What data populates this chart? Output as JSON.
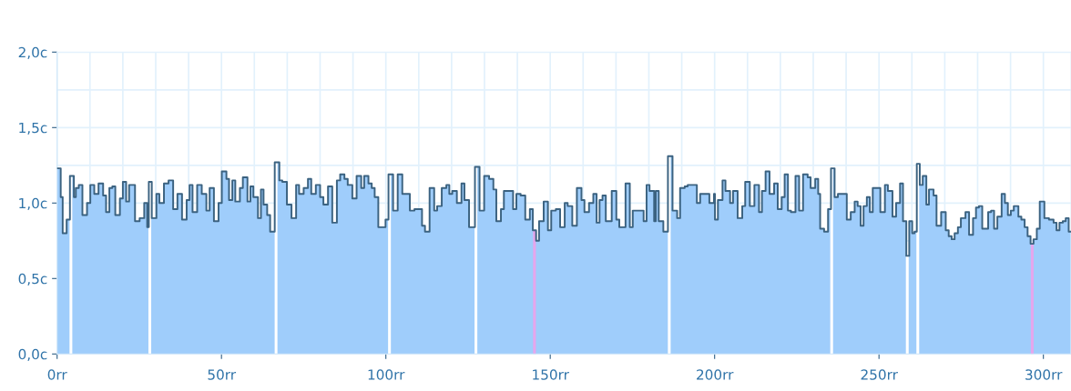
{
  "chart_data": {
    "type": "area",
    "xlim": [
      0,
      308.4
    ],
    "ylim": [
      0,
      2.0
    ],
    "xticks": [
      {
        "value": 0,
        "label": "0rr"
      },
      {
        "value": 50,
        "label": "50rr"
      },
      {
        "value": 100,
        "label": "100rr"
      },
      {
        "value": 150,
        "label": "150rr"
      },
      {
        "value": 200,
        "label": "200rr"
      },
      {
        "value": 250,
        "label": "250rr"
      },
      {
        "value": 300,
        "label": "300rr"
      }
    ],
    "yticks": [
      {
        "value": 0,
        "label": "0,0c"
      },
      {
        "value": 0.5,
        "label": "0,5c"
      },
      {
        "value": 1.0,
        "label": "1,0c"
      },
      {
        "value": 1.5,
        "label": "1,5c"
      },
      {
        "value": 2.0,
        "label": "2,0c"
      }
    ],
    "grid": true,
    "ref_lines": [
      {
        "axis": "x",
        "value": 4.2,
        "color": "#ffffff"
      },
      {
        "axis": "x",
        "value": 28.2,
        "color": "#ffffff"
      },
      {
        "axis": "x",
        "value": 66.6,
        "color": "#ffffff"
      },
      {
        "axis": "x",
        "value": 101.1,
        "color": "#ffffff"
      },
      {
        "axis": "x",
        "value": 127.4,
        "color": "#ffffff"
      },
      {
        "axis": "x",
        "value": 145.2,
        "color": "#e6a6ec"
      },
      {
        "axis": "x",
        "value": 186.2,
        "color": "#ffffff"
      },
      {
        "axis": "x",
        "value": 235.6,
        "color": "#ffffff"
      },
      {
        "axis": "x",
        "value": 258.6,
        "color": "#ffffff"
      },
      {
        "axis": "x",
        "value": 261.8,
        "color": "#ffffff"
      },
      {
        "axis": "x",
        "value": 296.6,
        "color": "#e6a6ec"
      }
    ],
    "series": [
      {
        "color": "#3b6280",
        "x": [
          0,
          1.1,
          1.1,
          1.7,
          1.7,
          2.9,
          2.9,
          3.9,
          3.9,
          5.1,
          5.1,
          5.7,
          5.7,
          6.6,
          6.6,
          7.7,
          7.7,
          9.1,
          9.1,
          10.1,
          10.1,
          11.3,
          11.3,
          12.6,
          12.6,
          14.0,
          14.0,
          14.9,
          14.9,
          15.9,
          15.9,
          16.8,
          16.8,
          17.7,
          17.7,
          19.1,
          19.1,
          20.0,
          20.0,
          21.0,
          21.0,
          21.9,
          21.9,
          23.7,
          23.7,
          25.1,
          25.1,
          26.5,
          26.5,
          27.4,
          27.4,
          27.9,
          27.9,
          28.8,
          28.8,
          30.2,
          30.2,
          31.1,
          31.1,
          32.5,
          32.5,
          33.9,
          33.9,
          35.3,
          35.3,
          36.6,
          36.6,
          38.0,
          38.0,
          39.4,
          39.4,
          40.3,
          40.3,
          41.2,
          41.2,
          42.6,
          42.6,
          44.0,
          44.0,
          45.4,
          45.4,
          46.4,
          46.4,
          47.7,
          47.7,
          49.1,
          49.1,
          50.1,
          50.1,
          51.5,
          51.5,
          52.3,
          52.3,
          53.3,
          53.3,
          54.2,
          54.2,
          55.6,
          55.6,
          56.5,
          56.5,
          57.9,
          57.9,
          58.8,
          58.8,
          59.7,
          59.7,
          61.1,
          61.1,
          62.0,
          62.0,
          62.8,
          62.8,
          63.9,
          63.9,
          64.8,
          64.8,
          66.2,
          66.2,
          67.6,
          67.6,
          68.5,
          68.5,
          69.9,
          69.9,
          71.3,
          71.3,
          72.7,
          72.7,
          73.6,
          73.6,
          75.0,
          75.0,
          76.3,
          76.3,
          77.3,
          77.3,
          78.7,
          78.7,
          80.0,
          80.0,
          81.0,
          81.0,
          82.4,
          82.4,
          83.7,
          83.7,
          85.1,
          85.1,
          86.1,
          86.1,
          87.4,
          87.4,
          88.4,
          88.4,
          89.8,
          89.8,
          91.1,
          91.1,
          92.5,
          92.5,
          93.4,
          93.4,
          94.7,
          94.7,
          95.7,
          95.7,
          96.6,
          96.6,
          97.7,
          97.7,
          99.9,
          99.9,
          100.8,
          100.8,
          102.2,
          102.2,
          103.6,
          103.6,
          105.0,
          105.0,
          107.3,
          107.3,
          108.7,
          108.7,
          111.0,
          111.0,
          111.9,
          111.9,
          113.3,
          113.3,
          114.7,
          114.7,
          115.6,
          115.6,
          117.0,
          117.0,
          118.4,
          118.4,
          119.3,
          119.3,
          120.2,
          120.2,
          121.6,
          121.6,
          123.0,
          123.0,
          123.9,
          123.9,
          125.3,
          125.3,
          127.1,
          127.1,
          128.5,
          128.5,
          129.9,
          129.9,
          131.4,
          131.4,
          132.7,
          132.7,
          133.6,
          133.6,
          135.0,
          135.0,
          135.9,
          135.9,
          138.7,
          138.7,
          139.7,
          139.7,
          141.0,
          141.0,
          142.4,
          142.4,
          143.8,
          143.8,
          144.7,
          144.7,
          145.7,
          145.7,
          146.6,
          146.6,
          148.0,
          148.0,
          149.3,
          149.3,
          150.3,
          150.3,
          151.7,
          151.7,
          153.0,
          153.0,
          154.4,
          154.4,
          155.3,
          155.3,
          156.7,
          156.7,
          158.1,
          158.1,
          159.5,
          159.5,
          160.4,
          160.4,
          161.8,
          161.8,
          163.1,
          163.1,
          164.1,
          164.1,
          165.0,
          165.0,
          165.9,
          165.9,
          166.9,
          166.9,
          168.7,
          168.7,
          170.1,
          170.1,
          171.0,
          171.0,
          172.9,
          172.9,
          174.2,
          174.2,
          175.1,
          175.1,
          178.4,
          178.4,
          179.3,
          179.3,
          180.2,
          180.2,
          181.6,
          181.6,
          182.1,
          182.1,
          183.0,
          183.0,
          184.4,
          184.4,
          185.8,
          185.8,
          187.2,
          187.2,
          188.6,
          188.6,
          189.5,
          189.5,
          190.9,
          190.9,
          191.8,
          191.8,
          194.6,
          194.6,
          195.6,
          195.6,
          198.4,
          198.4,
          199.8,
          199.8,
          200.1,
          200.1,
          201.0,
          201.0,
          202.4,
          202.4,
          203.3,
          203.3,
          204.7,
          204.7,
          205.6,
          205.6,
          207.0,
          207.0,
          208.4,
          208.4,
          209.3,
          209.3,
          210.7,
          210.7,
          212.1,
          212.1,
          213.5,
          213.5,
          214.4,
          214.4,
          215.5,
          215.5,
          216.7,
          216.7,
          218.1,
          218.1,
          219.2,
          219.2,
          220.4,
          220.4,
          221.3,
          221.3,
          222.3,
          222.3,
          223.2,
          223.2,
          224.6,
          224.6,
          225.7,
          225.7,
          226.9,
          226.9,
          228.3,
          228.3,
          229.2,
          229.2,
          230.6,
          230.6,
          231.5,
          231.5,
          232.1,
          232.1,
          233.3,
          233.3,
          234.5,
          234.5,
          235.4,
          235.4,
          236.5,
          236.5,
          237.5,
          237.5,
          240.2,
          240.2,
          241.4,
          241.4,
          242.6,
          242.6,
          243.5,
          243.5,
          244.4,
          244.4,
          245.3,
          245.3,
          246.3,
          246.3,
          247.2,
          247.2,
          248.1,
          248.1,
          250.4,
          250.4,
          251.8,
          251.8,
          252.7,
          252.7,
          254.1,
          254.1,
          255.2,
          255.2,
          256.4,
          256.4,
          257.3,
          257.3,
          258.3,
          258.3,
          259.2,
          259.2,
          260.1,
          260.1,
          260.8,
          260.8,
          261.5,
          261.5,
          262.4,
          262.4,
          263.3,
          263.3,
          264.4,
          264.4,
          265.2,
          265.2,
          266.6,
          266.6,
          267.5,
          267.5,
          268.9,
          268.9,
          270.3,
          270.3,
          271.2,
          271.2,
          272.1,
          272.1,
          273.0,
          273.0,
          274.0,
          274.0,
          274.9,
          274.9,
          276.3,
          276.3,
          277.4,
          277.4,
          278.6,
          278.6,
          279.5,
          279.5,
          280.4,
          280.4,
          281.4,
          281.4,
          283.2,
          283.2,
          284.1,
          284.1,
          285.0,
          285.0,
          286.0,
          286.0,
          287.3,
          287.3,
          288.3,
          288.3,
          289.2,
          289.2,
          290.1,
          290.1,
          291.0,
          291.0,
          292.4,
          292.4,
          293.3,
          293.3,
          294.3,
          294.3,
          295.2,
          295.2,
          296.1,
          296.1,
          297.0,
          297.0,
          298.0,
          298.0,
          298.9,
          298.9,
          300.3,
          300.3,
          301.7,
          301.7,
          303.1,
          303.1,
          304.0,
          304.0,
          304.9,
          304.9,
          305.9,
          305.9,
          306.8,
          306.8,
          307.7,
          307.7,
          308.4
        ],
        "values": [
          1.23,
          1.23,
          1.04,
          1.04,
          0.8,
          0.8,
          0.89,
          0.89,
          1.18,
          1.18,
          1.04,
          1.04,
          1.1,
          1.1,
          1.12,
          1.12,
          0.92,
          0.92,
          1.0,
          1.0,
          1.12,
          1.12,
          1.06,
          1.06,
          1.13,
          1.13,
          1.05,
          1.05,
          0.94,
          0.94,
          1.1,
          1.1,
          1.11,
          1.11,
          0.92,
          0.92,
          1.03,
          1.03,
          1.14,
          1.14,
          1.01,
          1.01,
          1.12,
          1.12,
          0.88,
          0.88,
          0.9,
          0.9,
          1.0,
          1.0,
          0.84,
          0.84,
          1.14,
          1.14,
          0.9,
          0.9,
          1.06,
          1.06,
          1.0,
          1.0,
          1.13,
          1.13,
          1.15,
          1.15,
          0.96,
          0.96,
          1.06,
          1.06,
          0.89,
          0.89,
          1.02,
          1.02,
          1.12,
          1.12,
          0.94,
          0.94,
          1.12,
          1.12,
          1.06,
          1.06,
          0.95,
          0.95,
          1.1,
          1.1,
          0.88,
          0.88,
          1.0,
          1.0,
          1.21,
          1.21,
          1.16,
          1.16,
          1.02,
          1.02,
          1.15,
          1.15,
          1.01,
          1.01,
          1.1,
          1.1,
          1.17,
          1.17,
          1.01,
          1.01,
          1.11,
          1.11,
          1.04,
          1.04,
          0.9,
          0.9,
          1.09,
          1.09,
          0.99,
          0.99,
          0.92,
          0.92,
          0.81,
          0.81,
          1.27,
          1.27,
          1.15,
          1.15,
          1.14,
          1.14,
          0.99,
          0.99,
          0.9,
          0.9,
          1.12,
          1.12,
          1.06,
          1.06,
          1.1,
          1.1,
          1.16,
          1.16,
          1.06,
          1.06,
          1.12,
          1.12,
          1.04,
          1.04,
          0.99,
          0.99,
          1.11,
          1.11,
          0.87,
          0.87,
          1.15,
          1.15,
          1.19,
          1.19,
          1.16,
          1.16,
          1.12,
          1.12,
          1.03,
          1.03,
          1.18,
          1.18,
          1.1,
          1.1,
          1.18,
          1.18,
          1.13,
          1.13,
          1.1,
          1.1,
          1.04,
          1.04,
          0.84,
          0.84,
          0.89,
          0.89,
          1.19,
          1.19,
          0.95,
          0.95,
          1.19,
          1.19,
          1.06,
          1.06,
          0.95,
          0.95,
          0.96,
          0.96,
          0.85,
          0.85,
          0.81,
          0.81,
          1.1,
          1.1,
          0.95,
          0.95,
          0.98,
          0.98,
          1.1,
          1.1,
          1.12,
          1.12,
          1.06,
          1.06,
          1.08,
          1.08,
          1.0,
          1.0,
          1.13,
          1.13,
          1.02,
          1.02,
          0.84,
          0.84,
          1.24,
          1.24,
          0.95,
          0.95,
          1.18,
          1.18,
          1.16,
          1.16,
          1.09,
          1.09,
          0.88,
          0.88,
          0.96,
          0.96,
          1.08,
          1.08,
          0.96,
          0.96,
          1.06,
          1.06,
          1.05,
          1.05,
          0.89,
          0.89,
          0.96,
          0.96,
          0.82,
          0.82,
          0.75,
          0.75,
          0.88,
          0.88,
          1.01,
          1.01,
          0.82,
          0.82,
          0.95,
          0.95,
          0.96,
          0.96,
          0.84,
          0.84,
          1.0,
          1.0,
          0.98,
          0.98,
          0.85,
          0.85,
          1.1,
          1.1,
          1.02,
          1.02,
          0.94,
          0.94,
          1.0,
          1.0,
          1.06,
          1.06,
          0.87,
          0.87,
          1.02,
          1.02,
          1.05,
          1.05,
          0.88,
          0.88,
          1.08,
          1.08,
          0.89,
          0.89,
          0.84,
          0.84,
          1.13,
          1.13,
          0.84,
          0.84,
          0.95,
          0.95,
          0.88,
          0.88,
          1.12,
          1.12,
          1.08,
          1.08,
          0.88,
          0.88,
          1.08,
          1.08,
          0.88,
          0.88,
          0.81,
          0.81,
          1.31,
          1.31,
          0.95,
          0.95,
          0.9,
          0.9,
          1.1,
          1.1,
          1.11,
          1.11,
          1.12,
          1.12,
          1.0,
          1.0,
          1.06,
          1.06,
          1.0,
          1.0,
          1.06,
          1.06,
          0.89,
          0.89,
          1.02,
          1.02,
          1.15,
          1.15,
          1.08,
          1.08,
          1.0,
          1.0,
          1.08,
          1.08,
          0.9,
          0.9,
          0.98,
          0.98,
          1.14,
          1.14,
          0.98,
          0.98,
          1.12,
          1.12,
          0.94,
          0.94,
          1.08,
          1.08,
          1.21,
          1.21,
          1.06,
          1.06,
          1.13,
          1.13,
          0.96,
          0.96,
          1.04,
          1.04,
          1.19,
          1.19,
          0.95,
          0.95,
          0.94,
          0.94,
          1.18,
          1.18,
          0.95,
          0.95,
          1.19,
          1.19,
          1.17,
          1.17,
          1.1,
          1.1,
          1.16,
          1.16,
          1.06,
          1.06,
          0.83,
          0.83,
          0.81,
          0.81,
          0.96,
          0.96,
          1.23,
          1.23,
          1.04,
          1.04,
          1.06,
          1.06,
          0.89,
          0.89,
          0.94,
          0.94,
          1.01,
          1.01,
          0.98,
          0.98,
          0.85,
          0.85,
          0.98,
          0.98,
          1.04,
          1.04,
          0.94,
          0.94,
          1.1,
          1.1,
          0.94,
          0.94,
          1.12,
          1.12,
          1.08,
          1.08,
          0.91,
          0.91,
          1.0,
          1.0,
          1.13,
          1.13,
          0.88,
          0.88,
          0.65,
          0.65,
          0.88,
          0.88,
          0.8,
          0.8,
          0.81,
          0.81,
          1.26,
          1.26,
          1.12,
          1.12,
          1.18,
          1.18,
          0.99,
          0.99,
          1.09,
          1.09,
          1.05,
          1.05,
          0.85,
          0.85,
          0.94,
          0.94,
          0.82,
          0.82,
          0.78,
          0.78,
          0.76,
          0.76,
          0.8,
          0.8,
          0.84,
          0.84,
          0.9,
          0.9,
          0.94,
          0.94,
          0.79,
          0.79,
          0.9,
          0.9,
          0.97,
          0.97,
          0.98,
          0.98,
          0.83,
          0.83,
          0.94,
          0.94,
          0.95,
          0.95,
          0.83,
          0.83,
          0.91,
          0.91,
          1.06,
          1.06,
          1.0,
          1.0,
          0.92,
          0.92,
          0.95,
          0.95,
          0.98,
          0.98,
          0.91,
          0.91,
          0.89,
          0.89,
          0.84,
          0.84,
          0.78,
          0.78,
          0.73,
          0.73,
          0.76,
          0.76,
          0.83,
          0.83,
          1.01,
          1.01,
          0.9,
          0.9,
          0.89,
          0.89,
          0.87,
          0.87,
          0.82,
          0.82,
          0.87,
          0.87,
          0.88,
          0.88,
          0.9,
          0.9,
          0.81,
          0.81
        ]
      }
    ]
  }
}
